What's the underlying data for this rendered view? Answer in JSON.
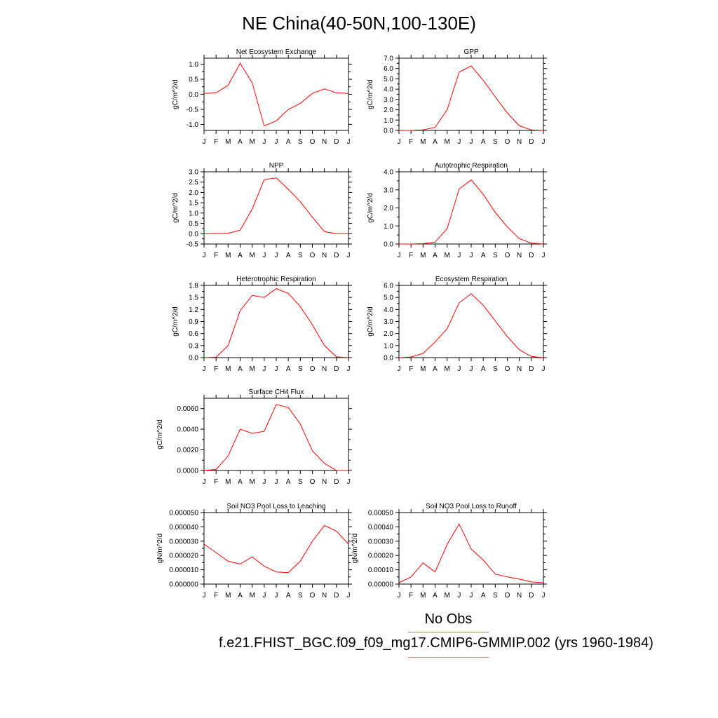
{
  "title": "NE China(40-50N,100-130E)",
  "legend": {
    "obs_label": "No Obs",
    "obs_color": "#7a7ad8",
    "case_label": "f.e21.FHIST_BGC.f09_f09_mg17.CMIP6-GMMIP.002 (yrs 1960-1984)",
    "case_color": "#e07a7a"
  },
  "line_color": "#ff0000",
  "chart_data": [
    {
      "type": "line",
      "title": "Net Ecosystem Exchange",
      "ylabel": "gC/m^2/d",
      "categories": [
        "J",
        "F",
        "M",
        "A",
        "M",
        "J",
        "J",
        "A",
        "S",
        "O",
        "N",
        "D",
        "J"
      ],
      "ylim": [
        -1.2,
        1.2
      ],
      "yticks": [
        -1.0,
        -0.5,
        0.0,
        0.5,
        1.0
      ],
      "ytick_labels": [
        "-1.0",
        "-0.5",
        "0.0",
        "0.5",
        "1.0"
      ],
      "values": [
        0.03,
        0.05,
        0.3,
        1.03,
        0.38,
        -1.05,
        -0.88,
        -0.5,
        -0.3,
        0.03,
        0.18,
        0.05,
        0.03
      ]
    },
    {
      "type": "line",
      "title": "GPP",
      "ylabel": "gC/m^2/d",
      "categories": [
        "J",
        "F",
        "M",
        "A",
        "M",
        "J",
        "J",
        "A",
        "S",
        "O",
        "N",
        "D",
        "J"
      ],
      "ylim": [
        0,
        7
      ],
      "yticks": [
        0,
        1,
        2,
        3,
        4,
        5,
        6,
        7
      ],
      "ytick_labels": [
        "0.0",
        "1.0",
        "2.0",
        "3.0",
        "4.0",
        "5.0",
        "6.0",
        "7.0"
      ],
      "values": [
        0.0,
        0.0,
        0.05,
        0.3,
        2.0,
        5.65,
        6.25,
        4.85,
        3.25,
        1.7,
        0.45,
        0.05,
        0.0
      ]
    },
    {
      "type": "line",
      "title": "NPP",
      "ylabel": "gC/m^2/d",
      "categories": [
        "J",
        "F",
        "M",
        "A",
        "M",
        "J",
        "J",
        "A",
        "S",
        "O",
        "N",
        "D",
        "J"
      ],
      "ylim": [
        -0.5,
        3.0
      ],
      "yticks": [
        -0.5,
        0,
        0.5,
        1,
        1.5,
        2,
        2.5,
        3
      ],
      "ytick_labels": [
        "-0.5",
        "0.0",
        "0.5",
        "1.0",
        "1.5",
        "2.0",
        "2.5",
        "3.0"
      ],
      "values": [
        0.0,
        0.0,
        0.02,
        0.17,
        1.2,
        2.62,
        2.7,
        2.15,
        1.55,
        0.8,
        0.1,
        0.0,
        0.0
      ]
    },
    {
      "type": "line",
      "title": "Autotrophic Respiration",
      "ylabel": "gC/m^2/d",
      "categories": [
        "J",
        "F",
        "M",
        "A",
        "M",
        "J",
        "J",
        "A",
        "S",
        "O",
        "N",
        "D",
        "J"
      ],
      "ylim": [
        0,
        4
      ],
      "yticks": [
        0,
        1,
        2,
        3,
        4
      ],
      "ytick_labels": [
        "0.0",
        "1.0",
        "2.0",
        "3.0",
        "4.0"
      ],
      "values": [
        0.0,
        0.0,
        0.02,
        0.1,
        0.85,
        3.05,
        3.55,
        2.75,
        1.75,
        0.95,
        0.3,
        0.05,
        0.0
      ]
    },
    {
      "type": "line",
      "title": "Heterotrophic Respiration",
      "ylabel": "gC/m^2/d",
      "categories": [
        "J",
        "F",
        "M",
        "A",
        "M",
        "J",
        "J",
        "A",
        "S",
        "O",
        "N",
        "D",
        "J"
      ],
      "ylim": [
        0,
        1.8
      ],
      "yticks": [
        0,
        0.3,
        0.6,
        0.9,
        1.2,
        1.5,
        1.8
      ],
      "ytick_labels": [
        "0.0",
        "0.3",
        "0.6",
        "0.9",
        "1.2",
        "1.5",
        "1.8"
      ],
      "values": [
        0.0,
        0.01,
        0.3,
        1.17,
        1.55,
        1.5,
        1.72,
        1.6,
        1.27,
        0.82,
        0.3,
        0.02,
        0.0
      ]
    },
    {
      "type": "line",
      "title": "Ecosystem Respiration",
      "ylabel": "gC/m^2/d",
      "categories": [
        "J",
        "F",
        "M",
        "A",
        "M",
        "J",
        "J",
        "A",
        "S",
        "O",
        "N",
        "D",
        "J"
      ],
      "ylim": [
        0,
        6
      ],
      "yticks": [
        0,
        1,
        2,
        3,
        4,
        5,
        6
      ],
      "ytick_labels": [
        "0.0",
        "1.0",
        "2.0",
        "3.0",
        "4.0",
        "5.0",
        "6.0"
      ],
      "values": [
        0.0,
        0.05,
        0.35,
        1.3,
        2.4,
        4.55,
        5.3,
        4.35,
        3.05,
        1.75,
        0.65,
        0.1,
        0.0
      ]
    },
    {
      "type": "line",
      "title": "Surface CH4 Flux",
      "ylabel": "gC/m^2/d",
      "categories": [
        "J",
        "F",
        "M",
        "A",
        "M",
        "J",
        "J",
        "A",
        "S",
        "O",
        "N",
        "D",
        "J"
      ],
      "ylim": [
        0,
        0.007
      ],
      "yticks": [
        0,
        0.002,
        0.004,
        0.006
      ],
      "ytick_labels": [
        "0.0000",
        "0.0020",
        "0.0040",
        "0.0060"
      ],
      "values": [
        0.0,
        0.0001,
        0.0014,
        0.004,
        0.0036,
        0.0038,
        0.0064,
        0.0061,
        0.0045,
        0.0019,
        0.0007,
        0.0,
        0.0
      ]
    },
    {
      "type": "line",
      "title": "Soil NO3 Pool Loss to Leaching",
      "ylabel": "gN/m^2/d",
      "categories": [
        "J",
        "F",
        "M",
        "A",
        "M",
        "J",
        "J",
        "A",
        "S",
        "O",
        "N",
        "D",
        "J"
      ],
      "ylim": [
        0,
        5e-05
      ],
      "yticks": [
        0,
        1e-05,
        2e-05,
        3e-05,
        4e-05,
        5e-05
      ],
      "ytick_labels": [
        "0.000000",
        "0.000010",
        "0.000020",
        "0.000030",
        "0.000040",
        "0.000050"
      ],
      "values": [
        2.8e-05,
        2.2e-05,
        1.6e-05,
        1.4e-05,
        1.9e-05,
        1.25e-05,
        8.5e-06,
        8e-06,
        1.6e-05,
        3e-05,
        4.1e-05,
        3.7e-05,
        2.8e-05
      ]
    },
    {
      "type": "line",
      "title": "Soil NO3 Pool Loss to Runoff",
      "ylabel": "gN/m^2/d",
      "categories": [
        "J",
        "F",
        "M",
        "A",
        "M",
        "J",
        "J",
        "A",
        "S",
        "O",
        "N",
        "D",
        "J"
      ],
      "ylim": [
        0,
        0.0005
      ],
      "yticks": [
        0,
        0.0001,
        0.0002,
        0.0003,
        0.0004,
        0.0005
      ],
      "ytick_labels": [
        "0.00000",
        "0.00010",
        "0.00020",
        "0.00030",
        "0.00040",
        "0.00050"
      ],
      "values": [
        1e-05,
        5e-05,
        0.000148,
        8.5e-05,
        0.000277,
        0.00042,
        0.000245,
        0.000168,
        7e-05,
        5e-05,
        3.5e-05,
        1.5e-05,
        1e-05
      ]
    }
  ]
}
